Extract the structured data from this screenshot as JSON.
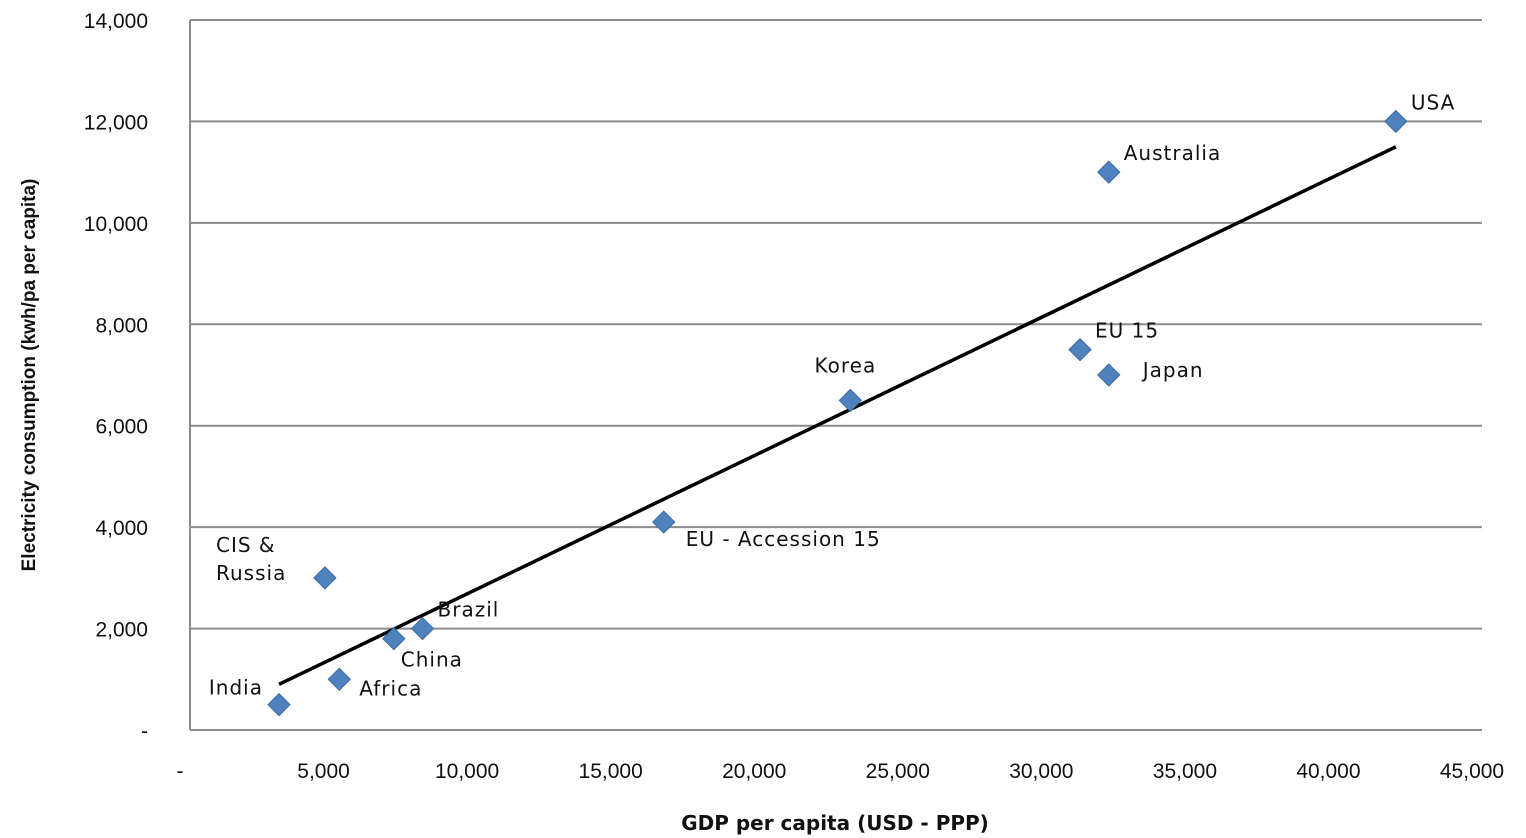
{
  "chart_data": {
    "type": "scatter",
    "title": "",
    "xlabel": "GDP per capita (USD - PPP)",
    "ylabel": "Electricity consumption (kwh/pa per capita)",
    "xlim": [
      0,
      45000
    ],
    "ylim": [
      0,
      14000
    ],
    "x_ticks": [
      0,
      5000,
      10000,
      15000,
      20000,
      25000,
      30000,
      35000,
      40000,
      45000
    ],
    "x_tick_labels": [
      "-",
      "5,000",
      "10,000",
      "15,000",
      "20,000",
      "25,000",
      "30,000",
      "35,000",
      "40,000",
      "45,000"
    ],
    "y_ticks": [
      0,
      2000,
      4000,
      6000,
      8000,
      10000,
      12000,
      14000
    ],
    "y_tick_labels": [
      "-",
      "2,000",
      "4,000",
      "6,000",
      "8,000",
      "10,000",
      "12,000",
      "14,000"
    ],
    "grid": "horizontal",
    "points": [
      {
        "label": "USA",
        "x": 42000,
        "y": 12000,
        "label_pos": "above-right"
      },
      {
        "label": "Australia",
        "x": 32000,
        "y": 11000,
        "label_pos": "above-right"
      },
      {
        "label": "EU 15",
        "x": 31000,
        "y": 7500,
        "label_pos": "above-right"
      },
      {
        "label": "Japan",
        "x": 32000,
        "y": 7000,
        "label_pos": "right"
      },
      {
        "label": "Korea",
        "x": 23000,
        "y": 6500,
        "label_pos": "above"
      },
      {
        "label": "EU - Accession 15",
        "x": 16500,
        "y": 4100,
        "label_pos": "below-right"
      },
      {
        "label": "CIS &\nRussia",
        "x": 4700,
        "y": 3000,
        "label_pos": "left"
      },
      {
        "label": "Brazil",
        "x": 8100,
        "y": 2000,
        "label_pos": "above-right"
      },
      {
        "label": "China",
        "x": 7100,
        "y": 1800,
        "label_pos": "below"
      },
      {
        "label": "Africa",
        "x": 5200,
        "y": 1000,
        "label_pos": "right"
      },
      {
        "label": "India",
        "x": 3100,
        "y": 500,
        "label_pos": "left"
      }
    ],
    "trendline": {
      "x": [
        3100,
        42000
      ],
      "y": [
        900,
        11500
      ]
    },
    "colors": {
      "marker": "#4f81bd",
      "trendline": "#000000",
      "grid": "#8c8c8c",
      "axis": "#8c8c8c"
    }
  }
}
